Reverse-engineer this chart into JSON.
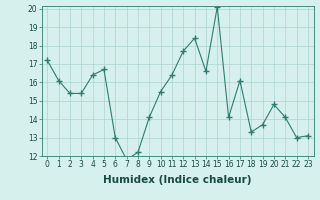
{
  "x": [
    0,
    1,
    2,
    3,
    4,
    5,
    6,
    7,
    8,
    9,
    10,
    11,
    12,
    13,
    14,
    15,
    16,
    17,
    18,
    19,
    20,
    21,
    22,
    23
  ],
  "y": [
    17.2,
    16.1,
    15.4,
    15.4,
    16.4,
    16.7,
    13.0,
    11.8,
    12.2,
    14.1,
    15.5,
    16.4,
    17.7,
    18.4,
    16.6,
    20.1,
    14.1,
    16.1,
    13.3,
    13.7,
    14.8,
    14.1,
    13.0,
    13.1
  ],
  "line_color": "#2e7d6e",
  "marker": "+",
  "marker_size": 4,
  "bg_color": "#d6f0ee",
  "grid_color": "#aed4cf",
  "xlabel": "Humidex (Indice chaleur)",
  "ylim": [
    12,
    20
  ],
  "xlim": [
    -0.5,
    23.5
  ],
  "yticks": [
    12,
    13,
    14,
    15,
    16,
    17,
    18,
    19,
    20
  ],
  "xticks": [
    0,
    1,
    2,
    3,
    4,
    5,
    6,
    7,
    8,
    9,
    10,
    11,
    12,
    13,
    14,
    15,
    16,
    17,
    18,
    19,
    20,
    21,
    22,
    23
  ],
  "tick_fontsize": 5.5,
  "xlabel_fontsize": 7.5
}
